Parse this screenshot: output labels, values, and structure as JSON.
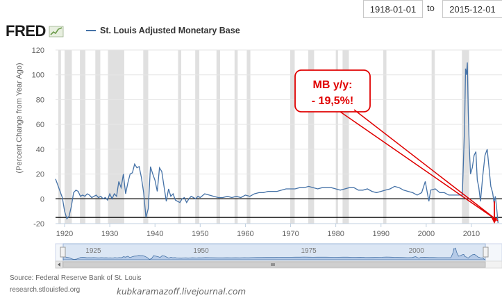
{
  "range": {
    "start": "1918-01-01",
    "to_label": "to",
    "end": "2015-12-01"
  },
  "logo": {
    "text": "FRED"
  },
  "footer": {
    "source": "Source: Federal Reserve Bank of St. Louis",
    "url": "research.stlouisfed.org",
    "watermark": "kubkaramazoff.livejournal.com"
  },
  "annotation": {
    "line1": "MB y/y:",
    "line2": "- 19,5%!",
    "color": "#e00000"
  },
  "colors": {
    "series": "#4572a7",
    "recession": "#e0e0e0",
    "annotation": "#e00000"
  },
  "chart_data": {
    "type": "line",
    "ylabel": "(Percent Change from Year Ago)",
    "xlim": [
      1918,
      2016
    ],
    "ylim": [
      -20,
      120
    ],
    "yticks": [
      -20,
      0,
      20,
      40,
      60,
      80,
      100,
      120
    ],
    "xticks": [
      1920,
      1930,
      1940,
      1950,
      1960,
      1970,
      1980,
      1990,
      2000,
      2010
    ],
    "grid": true,
    "legend_position": "top-left",
    "series": [
      {
        "name": "St. Louis Adjusted Monetary Base",
        "x": [
          1918.0,
          1918.5,
          1919.0,
          1919.5,
          1920.0,
          1920.5,
          1921.0,
          1921.5,
          1922.0,
          1922.5,
          1923.0,
          1923.5,
          1924.0,
          1924.5,
          1925.0,
          1925.5,
          1926.0,
          1926.5,
          1927.0,
          1927.5,
          1928.0,
          1928.5,
          1929.0,
          1929.5,
          1930.0,
          1930.5,
          1931.0,
          1931.5,
          1932.0,
          1932.5,
          1933.0,
          1933.5,
          1934.0,
          1934.5,
          1935.0,
          1935.5,
          1936.0,
          1936.5,
          1937.0,
          1937.5,
          1938.0,
          1938.5,
          1939.0,
          1939.5,
          1940.0,
          1940.5,
          1941.0,
          1941.5,
          1942.0,
          1942.5,
          1943.0,
          1943.5,
          1944.0,
          1944.5,
          1945.0,
          1945.5,
          1946.0,
          1946.5,
          1947.0,
          1947.5,
          1948.0,
          1948.5,
          1949.0,
          1949.5,
          1950.0,
          1951.0,
          1952.0,
          1953.0,
          1954.0,
          1955.0,
          1956.0,
          1957.0,
          1958.0,
          1959.0,
          1960.0,
          1961.0,
          1962.0,
          1963.0,
          1964.0,
          1965.0,
          1966.0,
          1967.0,
          1968.0,
          1969.0,
          1970.0,
          1971.0,
          1972.0,
          1973.0,
          1974.0,
          1975.0,
          1976.0,
          1977.0,
          1978.0,
          1979.0,
          1980.0,
          1981.0,
          1982.0,
          1983.0,
          1984.0,
          1985.0,
          1986.0,
          1987.0,
          1988.0,
          1989.0,
          1990.0,
          1991.0,
          1992.0,
          1993.0,
          1994.0,
          1995.0,
          1996.0,
          1997.0,
          1998.0,
          1999.0,
          1999.8,
          2000.2,
          2000.6,
          2001.0,
          2002.0,
          2003.0,
          2004.0,
          2005.0,
          2006.0,
          2007.0,
          2008.0,
          2008.5,
          2008.7,
          2008.9,
          2009.1,
          2009.3,
          2009.5,
          2009.8,
          2010.2,
          2010.6,
          2011.0,
          2011.3,
          2011.6,
          2012.0,
          2012.5,
          2013.0,
          2013.5,
          2013.9,
          2014.3,
          2014.7,
          2015.0,
          2015.3,
          2015.6,
          2015.9
        ],
        "y": [
          16,
          11,
          6,
          1,
          -10,
          -16,
          -14,
          -6,
          5,
          7,
          6,
          2,
          3,
          2,
          4,
          3,
          1,
          2,
          3,
          1,
          2,
          0,
          1,
          -1,
          4,
          0,
          4,
          2,
          14,
          9,
          20,
          4,
          13,
          20,
          21,
          28,
          25,
          26,
          17,
          5,
          -15,
          -8,
          26,
          20,
          15,
          6,
          25,
          22,
          10,
          -2,
          8,
          2,
          4,
          -1,
          -2,
          -3,
          0,
          1,
          -3,
          0,
          2,
          1,
          0,
          2,
          1,
          4,
          3,
          2,
          1,
          1,
          2,
          1,
          2,
          1,
          3,
          2,
          4,
          5,
          5,
          6,
          6,
          6,
          7,
          8,
          8,
          8,
          9,
          9,
          10,
          9,
          8,
          9,
          9,
          9,
          8,
          7,
          8,
          9,
          9,
          7,
          7,
          8,
          6,
          5,
          6,
          7,
          8,
          10,
          9,
          7,
          6,
          5,
          3,
          5,
          14,
          6,
          -2,
          7,
          8,
          5,
          5,
          3,
          3,
          3,
          3,
          60,
          105,
          100,
          110,
          70,
          45,
          20,
          25,
          35,
          38,
          15,
          10,
          -2,
          18,
          35,
          40,
          25,
          10,
          5,
          -3,
          2,
          -8,
          -19.5
        ]
      }
    ],
    "recessions": [
      [
        1918.6,
        1919.2
      ],
      [
        1920.0,
        1921.6
      ],
      [
        1923.4,
        1924.6
      ],
      [
        1926.8,
        1927.9
      ],
      [
        1929.6,
        1933.2
      ],
      [
        1937.4,
        1938.5
      ],
      [
        1945.1,
        1945.8
      ],
      [
        1948.9,
        1949.8
      ],
      [
        1953.6,
        1954.4
      ],
      [
        1957.6,
        1958.3
      ],
      [
        1960.3,
        1961.1
      ],
      [
        1969.9,
        1970.9
      ],
      [
        1973.9,
        1975.2
      ],
      [
        1980.0,
        1980.5
      ],
      [
        1981.5,
        1982.9
      ],
      [
        1990.5,
        1991.2
      ],
      [
        2001.2,
        2001.9
      ],
      [
        2007.9,
        2009.5
      ]
    ]
  }
}
